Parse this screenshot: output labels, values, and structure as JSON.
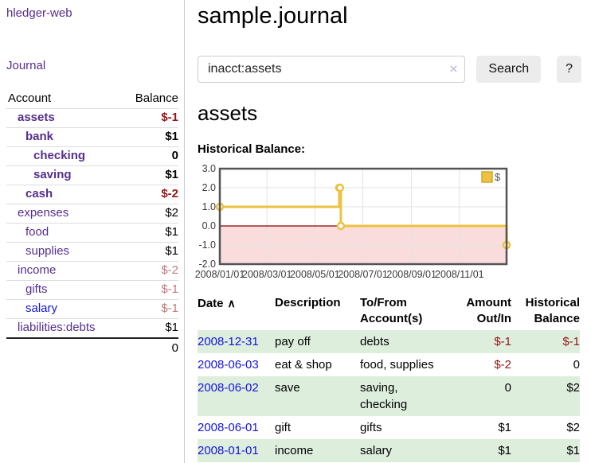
{
  "app": {
    "brand": "hledger-web"
  },
  "sidebar": {
    "journal_link": "Journal",
    "accounts": {
      "col_account": "Account",
      "col_balance": "Balance",
      "rows": [
        {
          "name": "assets",
          "balance": "$-1"
        },
        {
          "name": "bank",
          "balance": "$1"
        },
        {
          "name": "checking",
          "balance": "0"
        },
        {
          "name": "saving",
          "balance": "$1"
        },
        {
          "name": "cash",
          "balance": "$-2"
        },
        {
          "name": "expenses",
          "balance": "$2"
        },
        {
          "name": "food",
          "balance": "$1"
        },
        {
          "name": "supplies",
          "balance": "$1"
        },
        {
          "name": "income",
          "balance": "$-2"
        },
        {
          "name": "gifts",
          "balance": "$-1"
        },
        {
          "name": "salary",
          "balance": "$-1"
        },
        {
          "name": "liabilities:debts",
          "balance": "$1"
        }
      ],
      "total": "0"
    }
  },
  "header": {
    "title": "sample.journal",
    "search": {
      "value": "inacct:assets",
      "clear_icon": "×",
      "search_button": "Search",
      "help_button": "?"
    }
  },
  "account_page": {
    "heading": "assets",
    "chart_title": "Historical Balance:"
  },
  "chart_data": {
    "type": "line",
    "title": "Historical Balance:",
    "step": true,
    "series": [
      {
        "name": "$",
        "color": "#edc240",
        "points": [
          [
            "2008-01-01",
            1
          ],
          [
            "2008-06-01",
            2
          ],
          [
            "2008-06-02",
            2
          ],
          [
            "2008-06-03",
            0
          ],
          [
            "2008-12-31",
            -1
          ]
        ]
      }
    ],
    "x_range": [
      "2008-01-01",
      "2008-12-31"
    ],
    "ylim": [
      -2,
      3
    ],
    "y_ticks": [
      "3.0",
      "2.0",
      "1.0",
      "0.0",
      "-1.0",
      "-2.0"
    ],
    "y_tick_values": [
      3,
      2,
      1,
      0,
      -1,
      -2
    ],
    "x_tick_labels": [
      "2008/01/01",
      "2008/03/01",
      "2008/05/01",
      "2008/07/01",
      "2008/09/01",
      "2008/11/01"
    ],
    "x_tick_dates": [
      "2008-01-01",
      "2008-03-01",
      "2008-05-01",
      "2008-07-01",
      "2008-09-01",
      "2008-11-01"
    ],
    "grid": "both",
    "grid_color": "#e3e3e3",
    "negative_region_color": "#fadcdc",
    "zero_line_color": "#8b0000",
    "border_color": "#545454",
    "legend": {
      "label": "$",
      "position": "top-right"
    }
  },
  "register": {
    "headers": {
      "date": "Date",
      "sort_indicator": "∧",
      "description": "Description",
      "accounts": "To/From Account(s)",
      "amount": "Amount Out/In",
      "balance": "Historical Balance"
    },
    "rows": [
      {
        "date": "2008-12-31",
        "description": "pay off",
        "accounts": "debts",
        "amount": "$-1",
        "balance": "$-1"
      },
      {
        "date": "2008-06-03",
        "description": "eat & shop",
        "accounts": "food, supplies",
        "amount": "$-2",
        "balance": "0"
      },
      {
        "date": "2008-06-02",
        "description": "save",
        "accounts": "saving, checking",
        "amount": "0",
        "balance": "$2"
      },
      {
        "date": "2008-06-01",
        "description": "gift",
        "accounts": "gifts",
        "amount": "$1",
        "balance": "$2"
      },
      {
        "date": "2008-01-01",
        "description": "income",
        "accounts": "salary",
        "amount": "$1",
        "balance": "$1"
      }
    ]
  },
  "colors": {
    "link_purple": "#552e8e",
    "link_blue": "#1414e0",
    "negative_strong": "#941616",
    "negative_muted": "#c07a7a",
    "row_shade_green": "#deeedd",
    "series_gold": "#edc240"
  }
}
